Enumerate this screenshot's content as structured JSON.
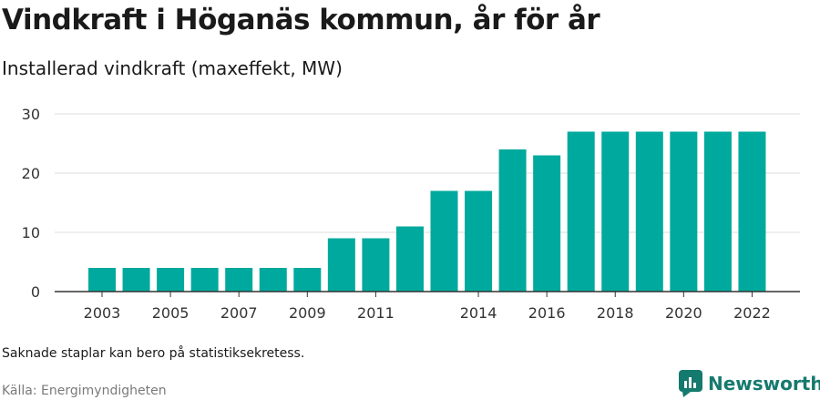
{
  "title": "Vindkraft i Höganäs kommun, år för år",
  "subtitle": "Installerad vindkraft (maxeffekt, MW)",
  "note": "Saknade staplar kan bero på statistiksekretess.",
  "source": "Källa: Energimyndigheten",
  "brand": {
    "name": "Newsworthy",
    "color": "#157a6e",
    "icon": "newsworthy-logo-icon"
  },
  "chart_data": {
    "type": "bar",
    "categories": [
      "2003",
      "2004",
      "2005",
      "2006",
      "2007",
      "2008",
      "2009",
      "2010",
      "2011",
      "2012",
      "2013",
      "2014",
      "2015",
      "2016",
      "2017",
      "2018",
      "2019",
      "2020",
      "2021",
      "2022"
    ],
    "values": [
      4,
      4,
      4,
      4,
      4,
      4,
      4,
      9,
      9,
      11,
      17,
      17,
      24,
      23,
      27,
      27,
      27,
      27,
      27,
      27
    ],
    "x_tick_labels": [
      "2003",
      "",
      "2005",
      "",
      "2007",
      "",
      "2009",
      "",
      "2011",
      "",
      "",
      "2014",
      "",
      "2016",
      "",
      "2018",
      "",
      "2020",
      "",
      "2022"
    ],
    "y_ticks": [
      0,
      10,
      20,
      30
    ],
    "ylim": [
      0,
      30
    ],
    "xlabel": "",
    "ylabel": "",
    "grid": true,
    "bar_color": "#00a99d"
  }
}
